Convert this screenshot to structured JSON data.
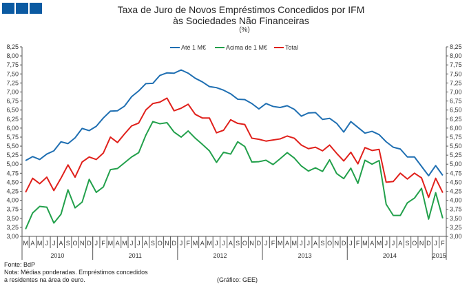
{
  "logo": {
    "name": "gee-logo-squares",
    "color": "#0b5aa2"
  },
  "chart_data": {
    "type": "line",
    "title": "Taxa de Juro de Novos Empréstimos Concedidos por IFM",
    "title_line2": "às Sociedades Não Financeiras",
    "unit": "(%)",
    "ylim": [
      3.0,
      8.25
    ],
    "ytick_step": 0.25,
    "ytick_labels": [
      "3,00",
      "3,25",
      "3,50",
      "3,75",
      "4,00",
      "4,25",
      "4,50",
      "4,75",
      "5,00",
      "5,25",
      "5,50",
      "5,75",
      "6,00",
      "6,25",
      "6,50",
      "6,75",
      "7,00",
      "7,25",
      "7,50",
      "7,75",
      "8,00",
      "8,25"
    ],
    "grid": false,
    "legend_position": "top-center",
    "months": [
      "M",
      "A",
      "M",
      "J",
      "J",
      "A",
      "S",
      "O",
      "N",
      "D",
      "J",
      "F",
      "M",
      "A",
      "M",
      "J",
      "J",
      "A",
      "S",
      "O",
      "N",
      "D",
      "J",
      "F",
      "M",
      "A",
      "M",
      "J",
      "J",
      "A",
      "S",
      "O",
      "N",
      "D",
      "J",
      "F",
      "M",
      "A",
      "M",
      "J",
      "J",
      "A",
      "S",
      "O",
      "N",
      "D",
      "J",
      "F",
      "M",
      "A",
      "M",
      "J",
      "J",
      "A",
      "S",
      "O",
      "N",
      "D",
      "J",
      "F"
    ],
    "years": [
      {
        "label": "2010",
        "months": 10
      },
      {
        "label": "2011",
        "months": 12
      },
      {
        "label": "2012",
        "months": 12
      },
      {
        "label": "2013",
        "months": 12
      },
      {
        "label": "2014",
        "months": 12
      },
      {
        "label": "2015",
        "months": 2
      }
    ],
    "series": [
      {
        "name": "Até 1 M€",
        "color": "#1f6fb2",
        "values": [
          5.1,
          5.21,
          5.13,
          5.28,
          5.37,
          5.62,
          5.57,
          5.73,
          5.99,
          5.93,
          6.05,
          6.28,
          6.47,
          6.48,
          6.61,
          6.87,
          7.03,
          7.23,
          7.24,
          7.46,
          7.53,
          7.52,
          7.61,
          7.52,
          7.38,
          7.28,
          7.15,
          7.12,
          7.05,
          6.95,
          6.8,
          6.79,
          6.68,
          6.53,
          6.68,
          6.6,
          6.57,
          6.62,
          6.52,
          6.33,
          6.42,
          6.43,
          6.24,
          6.27,
          6.13,
          5.89,
          6.18,
          6.02,
          5.86,
          5.91,
          5.82,
          5.62,
          5.47,
          5.42,
          5.2,
          5.2,
          4.94,
          4.68,
          4.96,
          4.69
        ]
      },
      {
        "name": "Acima de 1 M€",
        "color": "#22a04b",
        "values": [
          3.2,
          3.65,
          3.83,
          3.81,
          3.37,
          3.61,
          4.29,
          3.79,
          3.95,
          4.58,
          4.22,
          4.37,
          4.85,
          4.88,
          5.04,
          5.2,
          5.32,
          5.8,
          6.18,
          6.12,
          6.15,
          5.89,
          5.75,
          5.92,
          5.72,
          5.55,
          5.37,
          5.05,
          5.33,
          5.28,
          5.62,
          5.49,
          5.06,
          5.07,
          5.11,
          4.99,
          5.15,
          5.32,
          5.17,
          4.95,
          4.81,
          4.9,
          4.8,
          5.12,
          4.74,
          4.6,
          4.89,
          4.47,
          5.11,
          5.0,
          5.1,
          3.89,
          3.58,
          3.58,
          3.93,
          4.06,
          4.33,
          3.48,
          4.21,
          3.5
        ]
      },
      {
        "name": "Total",
        "color": "#e0201b",
        "values": [
          4.22,
          4.61,
          4.46,
          4.64,
          4.27,
          4.61,
          4.98,
          4.64,
          5.06,
          5.2,
          5.13,
          5.31,
          5.75,
          5.6,
          5.84,
          6.06,
          6.14,
          6.5,
          6.68,
          6.72,
          6.83,
          6.48,
          6.55,
          6.66,
          6.38,
          6.28,
          6.28,
          5.87,
          5.94,
          6.23,
          6.13,
          6.1,
          5.72,
          5.69,
          5.64,
          5.67,
          5.7,
          5.78,
          5.72,
          5.53,
          5.43,
          5.47,
          5.37,
          5.53,
          5.3,
          5.09,
          5.33,
          5.01,
          5.46,
          5.38,
          5.41,
          4.5,
          4.52,
          4.75,
          4.59,
          4.75,
          4.62,
          4.08,
          4.61,
          4.21
        ]
      }
    ]
  },
  "footer": {
    "source": "Fonte: BdP",
    "note_line1": "Nota: Médias ponderadas.  Empréstimos concedidos",
    "note_line2": "a residentes na área do euro.",
    "credit": "(Gráfico:  GEE)"
  }
}
